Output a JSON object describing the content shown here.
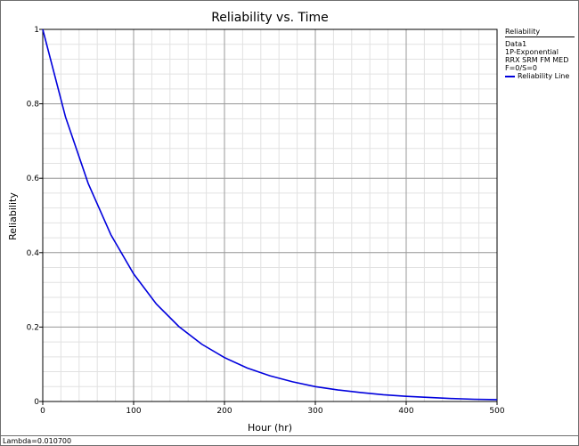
{
  "chart_data": {
    "type": "line",
    "title": "Reliability vs. Time",
    "xlabel": "Hour (hr)",
    "ylabel": "Reliability",
    "xlim": [
      0,
      500
    ],
    "ylim": [
      0,
      1
    ],
    "x_ticks": [
      0,
      100,
      200,
      300,
      400,
      500
    ],
    "y_ticks": [
      0,
      0.2,
      0.4,
      0.6,
      0.8,
      1
    ],
    "y_tick_labels": [
      "0",
      "0.2",
      "0.4",
      "0.6",
      "0.8",
      "1"
    ],
    "grid": true,
    "series": [
      {
        "name": "Reliability Line",
        "color": "#0000dd",
        "lambda": 0.0107,
        "x": [
          0,
          25,
          50,
          75,
          100,
          125,
          150,
          175,
          200,
          225,
          250,
          275,
          300,
          325,
          350,
          375,
          400,
          425,
          450,
          475,
          500
        ],
        "values": [
          1.0,
          0.765,
          0.586,
          0.448,
          0.343,
          0.262,
          0.201,
          0.154,
          0.118,
          0.09,
          0.069,
          0.053,
          0.04,
          0.031,
          0.024,
          0.018,
          0.014,
          0.011,
          0.008,
          0.006,
          0.005
        ]
      }
    ]
  },
  "legend": {
    "title": "Reliability",
    "lines": [
      "Data1",
      "1P-Exponential",
      "RRX SRM FM MED",
      "F=0/S=0"
    ],
    "series_label": "Reliability Line"
  },
  "footer": {
    "text": "Lambda=0.010700"
  }
}
